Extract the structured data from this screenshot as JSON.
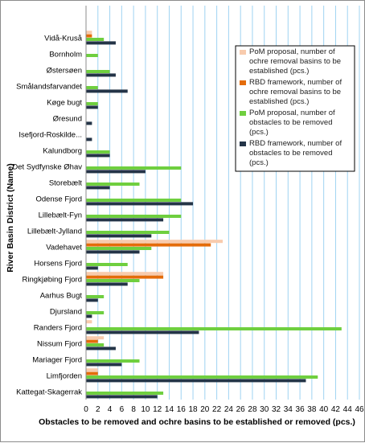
{
  "chart_data": {
    "type": "bar",
    "orientation": "horizontal",
    "categories": [
      "Vidå-Kruså",
      "Bornholm",
      "Østersøen",
      "Smålandsfarvandet",
      "Køge bugt",
      "Øresund",
      "Isefjord-Roskilde...",
      "Kalundborg",
      "Det Sydfynske Øhav",
      "Storebælt",
      "Odense Fjord",
      "Lillebælt-Fyn",
      "Lillebælt-Jylland",
      "Vadehavet",
      "Horsens Fjord",
      "Ringkjøbing Fjord",
      "Aarhus Bugt",
      "Djursland",
      "Randers Fjord",
      "Nissum Fjord",
      "Mariager Fjord",
      "Limfjorden",
      "Kattegat-Skagerrak"
    ],
    "series": [
      {
        "name": "PoM proposal, number of ochre removal basins to be established (pcs.)",
        "color": "#f8cbad",
        "values": [
          1,
          0,
          0,
          0,
          0,
          0,
          0,
          0,
          0,
          0,
          0,
          0,
          0,
          23,
          0,
          13,
          0,
          0,
          1,
          3,
          0,
          2,
          0
        ]
      },
      {
        "name": "RBD framework, number of ochre removal basins to be established (pcs.)",
        "color": "#e46c0a",
        "values": [
          1,
          0,
          0,
          0,
          0,
          0,
          0,
          0,
          0,
          0,
          0,
          0,
          0,
          21,
          0,
          13,
          0,
          0,
          0,
          2,
          0,
          2,
          0
        ]
      },
      {
        "name": "PoM proposal, number of obstacles to be removed (pcs.)",
        "color": "#6fcf3f",
        "values": [
          3,
          2,
          4,
          2,
          2,
          0,
          0,
          4,
          16,
          9,
          16,
          16,
          14,
          11,
          7,
          9,
          3,
          3,
          43,
          3,
          9,
          39,
          13
        ]
      },
      {
        "name": "RBD framework, number of obstacles to be removed (pcs.)",
        "color": "#243447",
        "values": [
          5,
          0,
          5,
          7,
          2,
          1,
          1,
          4,
          10,
          4,
          18,
          13,
          11,
          9,
          2,
          7,
          2,
          1,
          19,
          5,
          6,
          37,
          12
        ]
      }
    ],
    "xlabel": "Obstacles to be removed and ochre basins to be established or removed (pcs.)",
    "ylabel": "River Basin District (Name)",
    "xlim": [
      0,
      46
    ],
    "xticks": [
      "0",
      "2",
      "4",
      "6",
      "8",
      "10",
      "12",
      "14",
      "16",
      "18",
      "20",
      "22",
      "24",
      "26",
      "28",
      "30",
      "32",
      "34",
      "36",
      "38",
      "40",
      "42",
      "44",
      "46"
    ],
    "grid": true,
    "legend_position": "top-right"
  }
}
